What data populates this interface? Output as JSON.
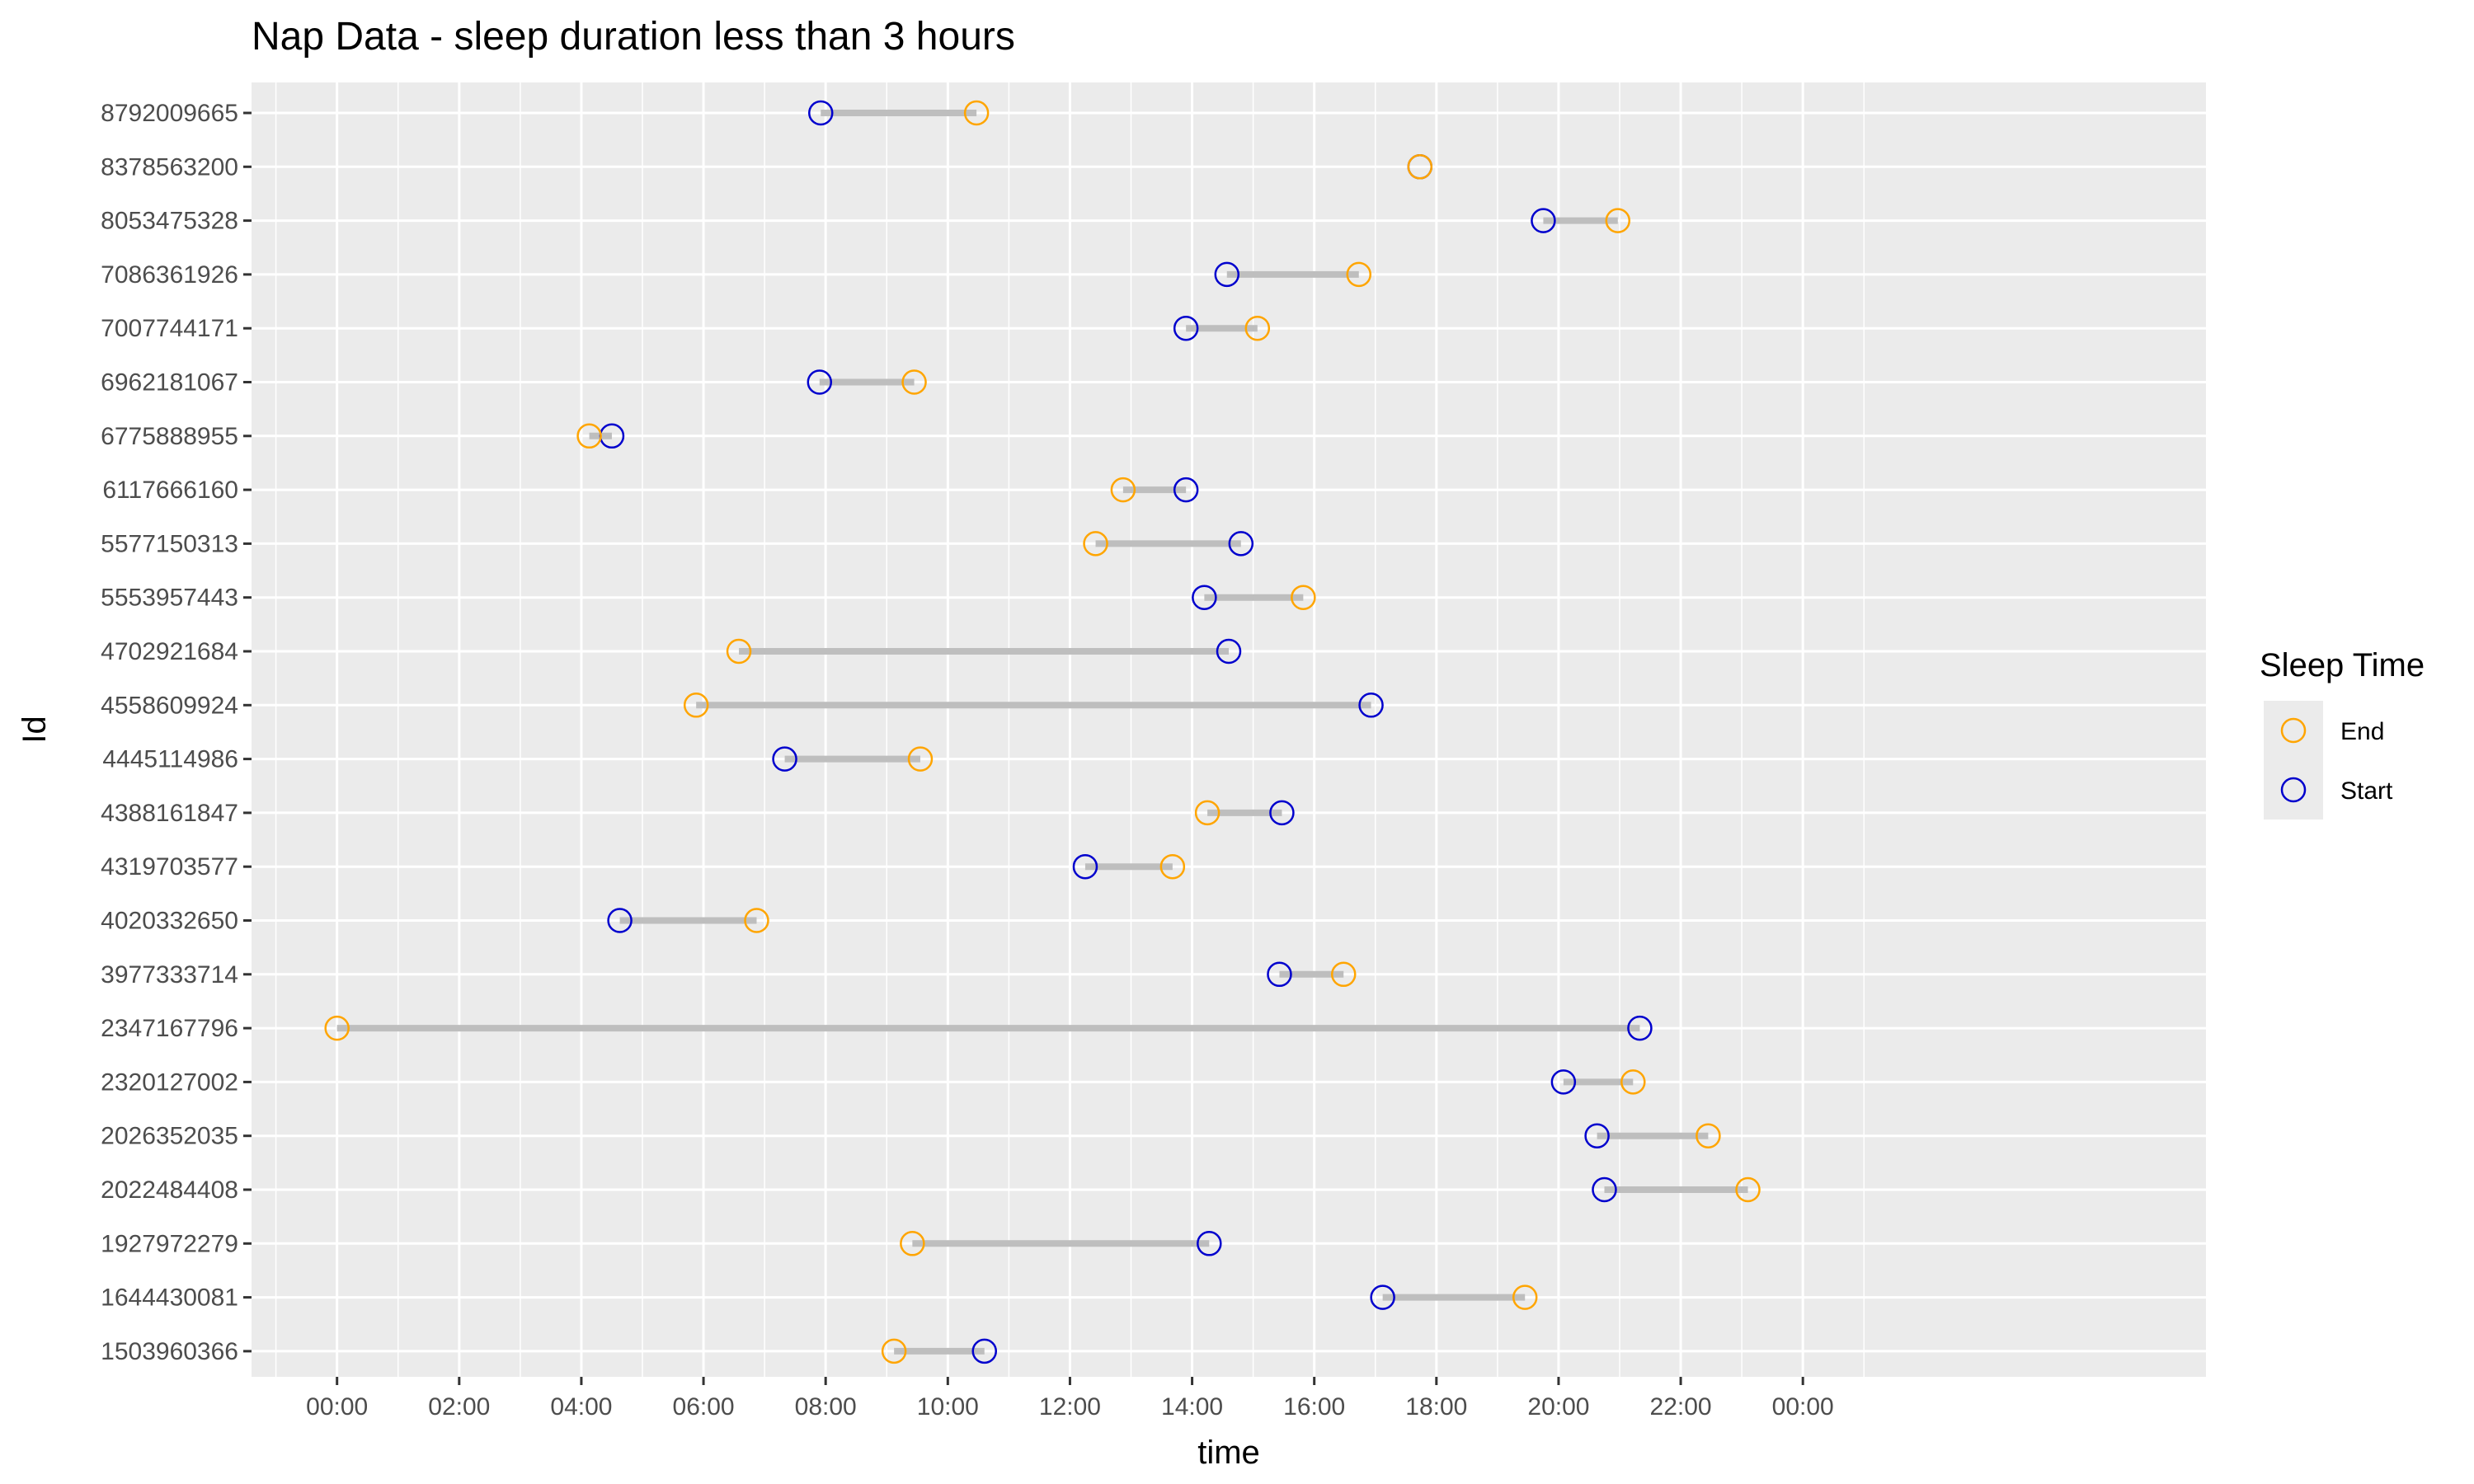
{
  "chart_data": {
    "type": "dumbbell",
    "title": "Nap Data - sleep duration less than 3 hours",
    "xlabel": "time",
    "ylabel": "Id",
    "xlim": [
      -1.4,
      30.6
    ],
    "x_ticks": [
      {
        "value": 0,
        "label": "00:00"
      },
      {
        "value": 2,
        "label": "02:00"
      },
      {
        "value": 4,
        "label": "04:00"
      },
      {
        "value": 6,
        "label": "06:00"
      },
      {
        "value": 8,
        "label": "08:00"
      },
      {
        "value": 10,
        "label": "10:00"
      },
      {
        "value": 12,
        "label": "12:00"
      },
      {
        "value": 14,
        "label": "14:00"
      },
      {
        "value": 16,
        "label": "16:00"
      },
      {
        "value": 18,
        "label": "18:00"
      },
      {
        "value": 20,
        "label": "20:00"
      },
      {
        "value": 22,
        "label": "22:00"
      },
      {
        "value": 24,
        "label": "00:00"
      }
    ],
    "grid": true,
    "legend": {
      "title": "Sleep Time",
      "position": "right",
      "items": [
        {
          "label": "End",
          "color": "#FFA500"
        },
        {
          "label": "Start",
          "color": "#0000CD"
        }
      ]
    },
    "colors": {
      "start": "#0000CD",
      "end": "#FFA500",
      "segment": "#BEBEBE",
      "panel": "#EBEBEB",
      "grid": "#FFFFFF"
    },
    "rows": [
      {
        "id": "8792009665",
        "start": 7.92,
        "end": 10.47
      },
      {
        "id": "8378563200",
        "start": 17.73,
        "end": 17.73
      },
      {
        "id": "8053475328",
        "start": 19.75,
        "end": 20.97
      },
      {
        "id": "7086361926",
        "start": 14.57,
        "end": 16.73
      },
      {
        "id": "7007744171",
        "start": 13.9,
        "end": 15.07
      },
      {
        "id": "6962181067",
        "start": 7.9,
        "end": 9.45
      },
      {
        "id": "6775888955",
        "start": 4.5,
        "end": 4.13
      },
      {
        "id": "6117666160",
        "start": 13.9,
        "end": 12.87
      },
      {
        "id": "5577150313",
        "start": 14.8,
        "end": 12.42
      },
      {
        "id": "5553957443",
        "start": 14.2,
        "end": 15.82
      },
      {
        "id": "4702921684",
        "start": 14.6,
        "end": 6.58
      },
      {
        "id": "4558609924",
        "start": 16.93,
        "end": 5.88
      },
      {
        "id": "4445114986",
        "start": 7.33,
        "end": 9.55
      },
      {
        "id": "4388161847",
        "start": 15.47,
        "end": 14.25
      },
      {
        "id": "4319703577",
        "start": 12.25,
        "end": 13.68
      },
      {
        "id": "4020332650",
        "start": 4.63,
        "end": 6.87
      },
      {
        "id": "3977333714",
        "start": 15.43,
        "end": 16.48
      },
      {
        "id": "2347167796",
        "start": 21.33,
        "end": 0.0
      },
      {
        "id": "2320127002",
        "start": 20.08,
        "end": 21.22
      },
      {
        "id": "2026352035",
        "start": 20.63,
        "end": 22.45
      },
      {
        "id": "2022484408",
        "start": 20.75,
        "end": 23.1
      },
      {
        "id": "1927972279",
        "start": 14.28,
        "end": 9.42
      },
      {
        "id": "1644430081",
        "start": 17.12,
        "end": 19.45
      },
      {
        "id": "1503960366",
        "start": 10.6,
        "end": 9.12
      }
    ]
  }
}
